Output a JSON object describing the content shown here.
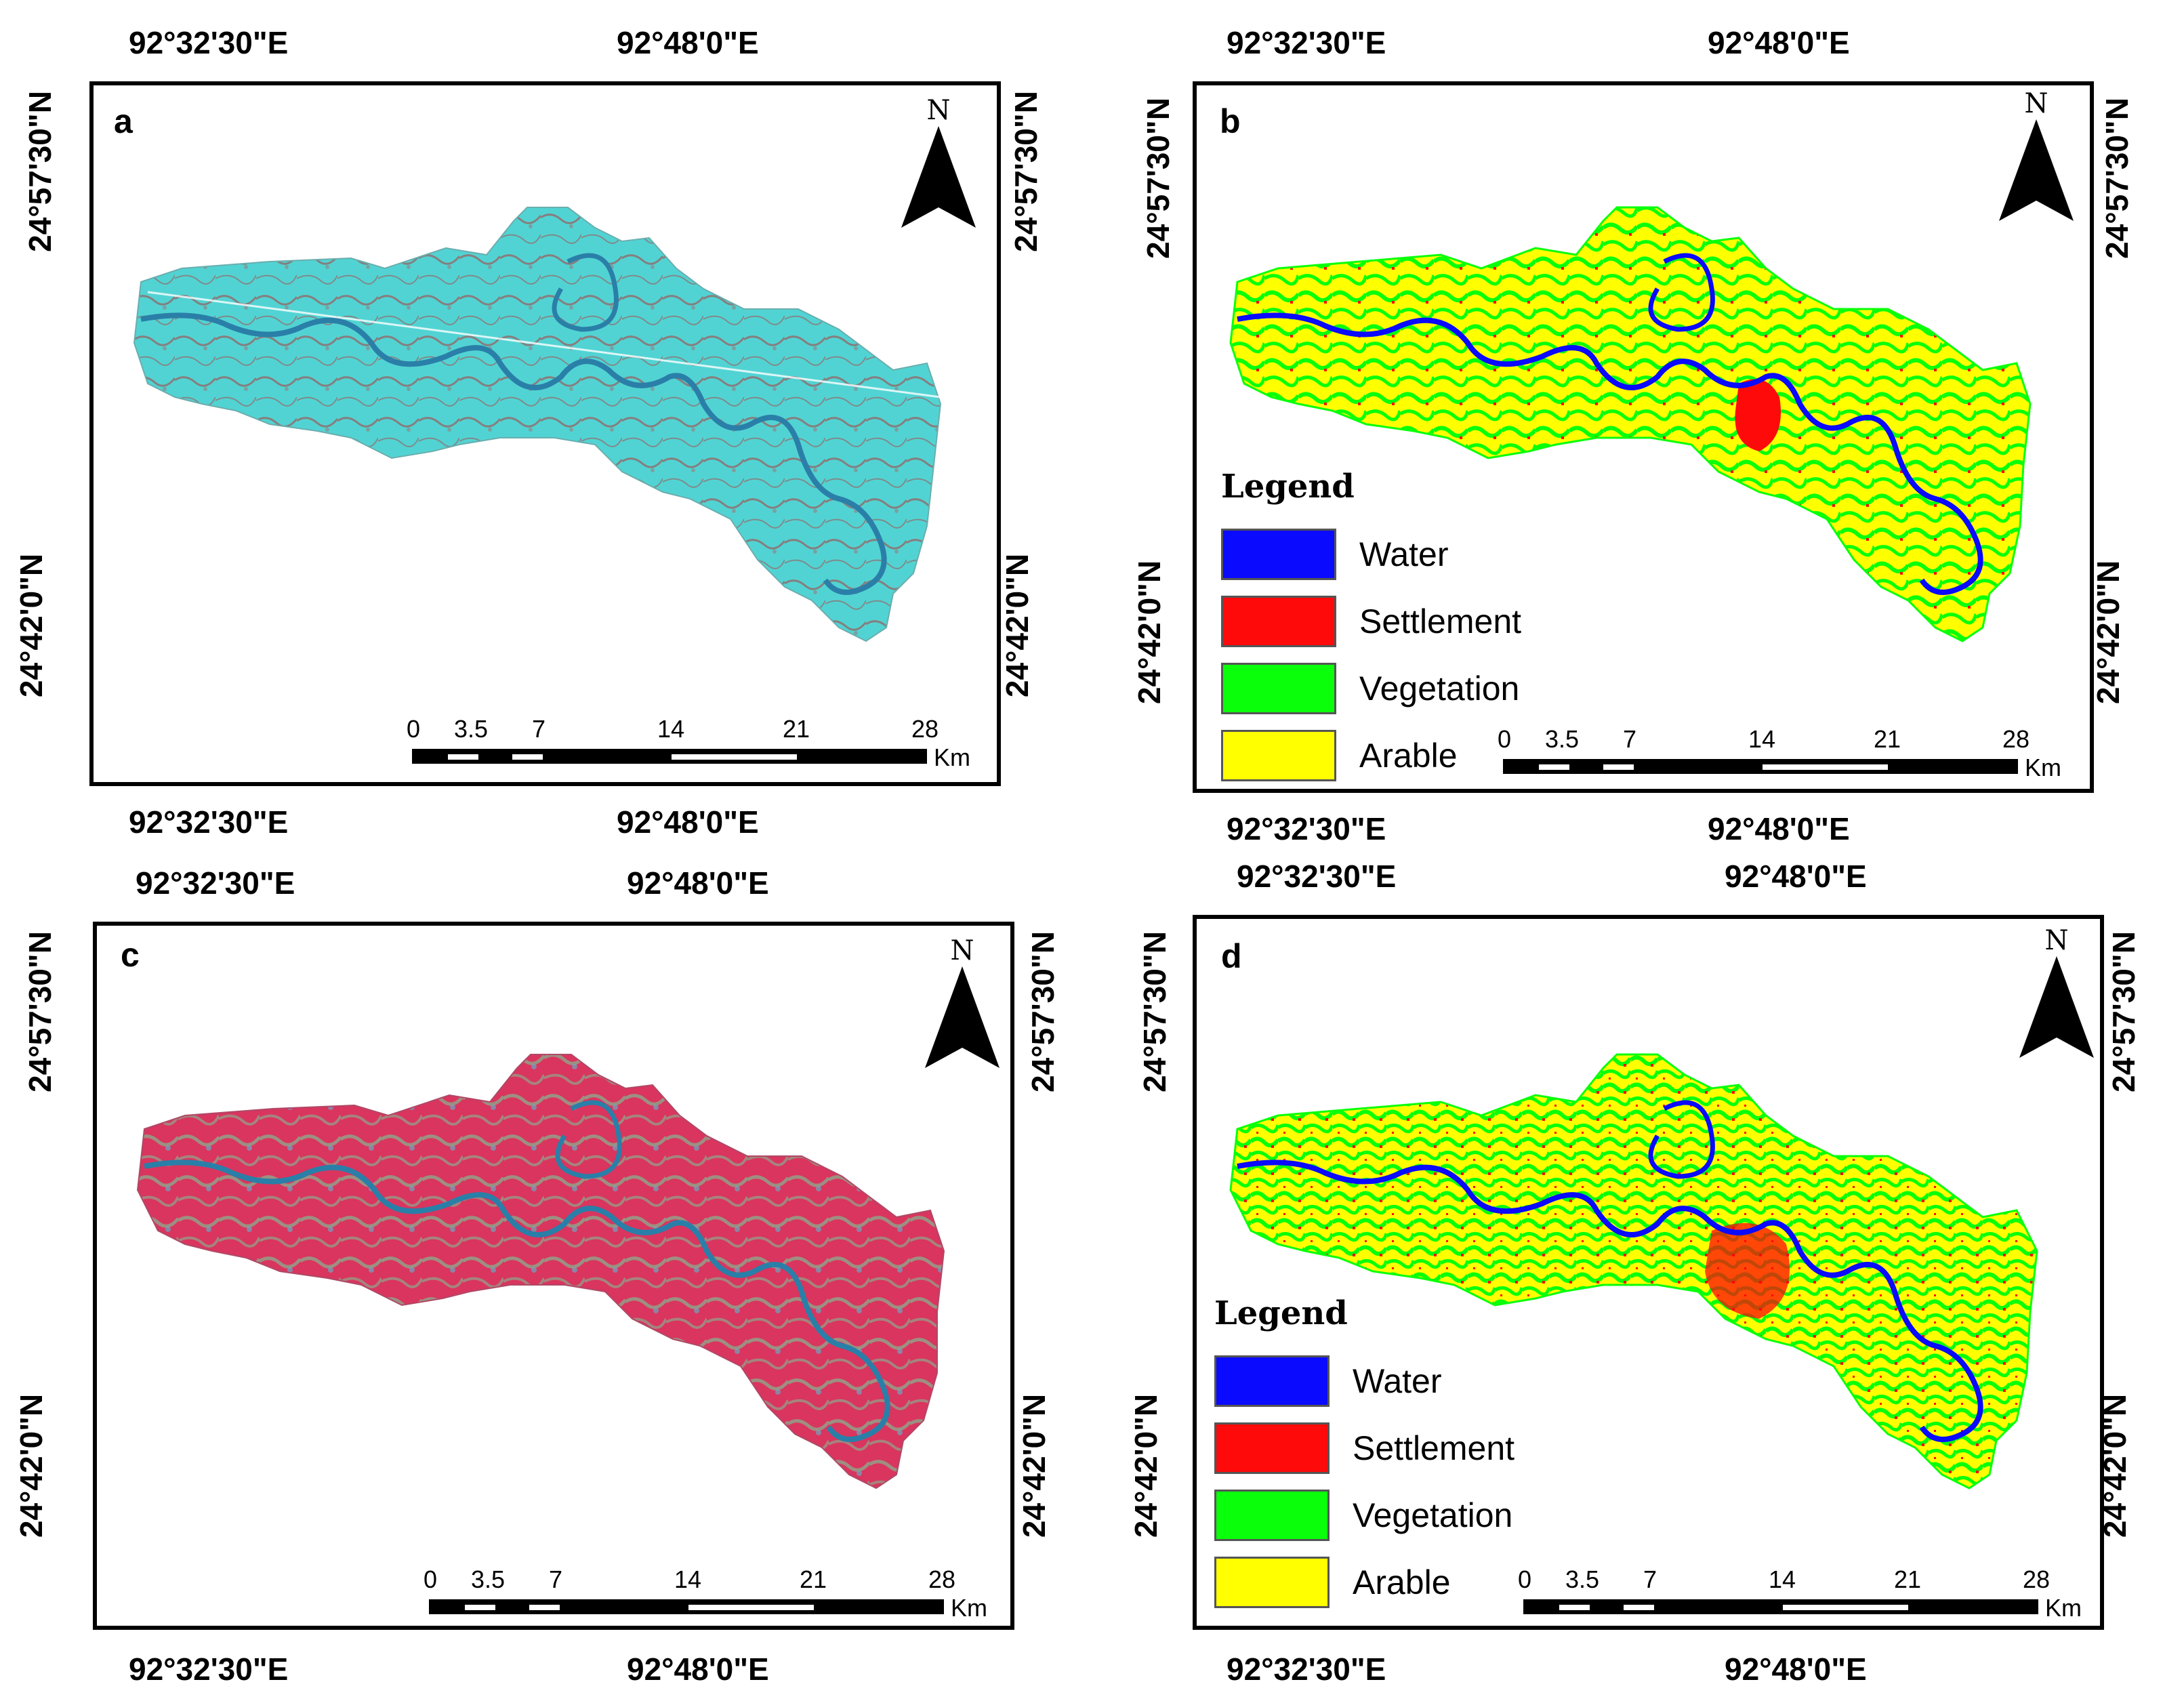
{
  "figure": {
    "panels": [
      {
        "letter": "a",
        "kind": "satellite-false-color-cyan"
      },
      {
        "letter": "b",
        "kind": "classified-lulc"
      },
      {
        "letter": "c",
        "kind": "satellite-false-color-red"
      },
      {
        "letter": "d",
        "kind": "classified-lulc"
      }
    ],
    "coords": {
      "lon_left": "92°32'30\"E",
      "lon_right": "92°48'0\"E",
      "lat_top": "24°57'30\"N",
      "lat_bottom": "24°42'0\"N"
    },
    "north_label": "N",
    "scale": {
      "ticks": [
        "0",
        "3.5",
        "7",
        "14",
        "21",
        "28"
      ],
      "unit": "Km"
    },
    "legend": {
      "title": "Legend",
      "items": [
        {
          "label": "Water",
          "color": "#0a0aff"
        },
        {
          "label": "Settlement",
          "color": "#ff0a0a"
        },
        {
          "label": "Vegetation",
          "color": "#0aff0a"
        },
        {
          "label": "Arable",
          "color": "#ffff00"
        }
      ]
    },
    "colors": {
      "cyan_base": "#4fd6d6",
      "cyan_texture": "#9c5b5b",
      "red_base": "#d9355e",
      "red_texture": "#8fa58a",
      "river": "#2a7fa8",
      "arable": "#ffff00",
      "vegetation": "#0aff0a",
      "settlement": "#ff0a0a",
      "water": "#0a0aff"
    }
  }
}
